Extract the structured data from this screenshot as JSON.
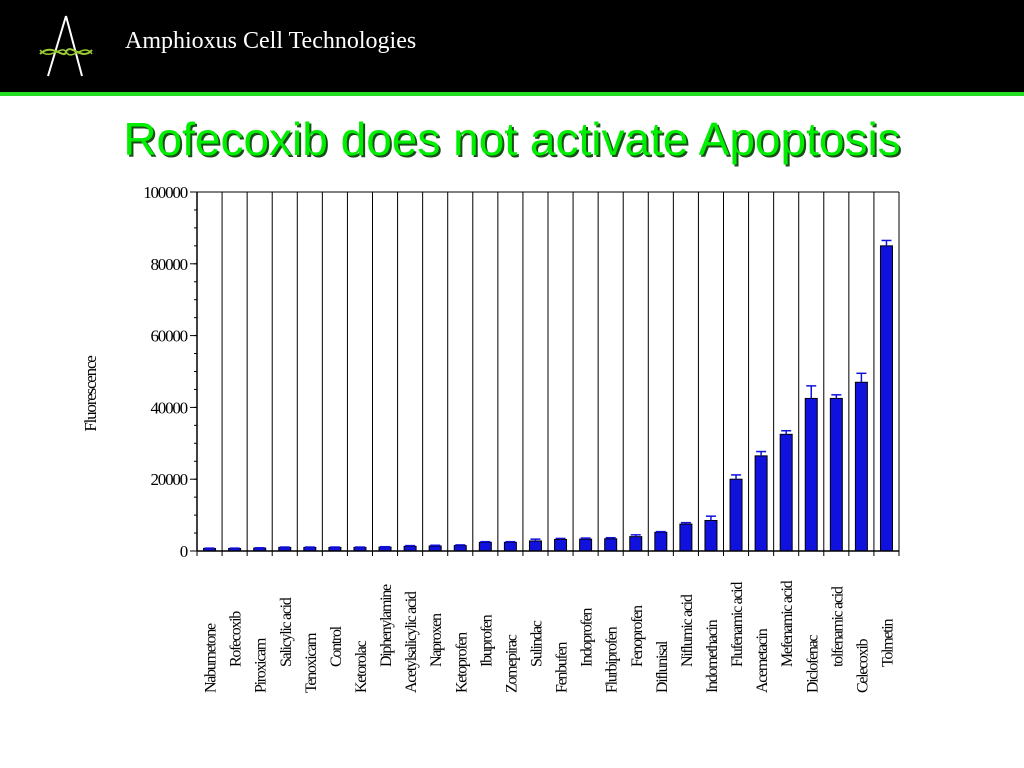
{
  "header": {
    "company_name": "Amphioxus Cell Technologies",
    "logo_icon": "amphioxus-logo-icon",
    "background_color": "#000000",
    "rule_color": "#22dd22"
  },
  "slide": {
    "title": "Rofecoxib does not activate Apoptosis",
    "title_color": "#00ee00"
  },
  "chart_data": {
    "type": "bar",
    "title": "",
    "xlabel": "",
    "ylabel": "Fluorescence",
    "ylim": [
      0,
      100000
    ],
    "yticks": [
      0,
      20000,
      40000,
      60000,
      80000,
      100000
    ],
    "ytick_labels": [
      "0",
      "20000",
      "40000",
      "60000",
      "80000",
      "100000"
    ],
    "grid": "vertical lines between categories",
    "legend": "none",
    "bar_color": "#1111dd",
    "categories": [
      "Nabumetone",
      "Rofecoxib",
      "Piroxicam",
      "Salicylic acid",
      "Tenoxicam",
      "Control",
      "Ketorolac",
      "Diphenylamine",
      "Acetylsalicylic acid",
      "Naproxen",
      "Ketoprofen",
      "Ibuprofen",
      "Zomepirac",
      "Sulindac",
      "Fenbufen",
      "Indoprofen",
      "Flurbiprofen",
      "Fenoprofen",
      "Diflunisal",
      "Niflumic acid",
      "Indomethacin",
      "Flufenamic acid",
      "Acemetacin",
      "Mefenamic acid",
      "Diclofenac",
      "tolfenamic acid",
      "Celecoxib",
      "Tolmetin"
    ],
    "values": [
      700,
      700,
      800,
      1000,
      1000,
      1000,
      1000,
      1100,
      1300,
      1400,
      1500,
      2400,
      2400,
      2800,
      3200,
      3300,
      3400,
      4000,
      5200,
      7500,
      8500,
      20000,
      26500,
      32500,
      42500,
      42500,
      47000,
      85000
    ],
    "errors": [
      100,
      100,
      100,
      100,
      100,
      100,
      100,
      100,
      200,
      200,
      200,
      200,
      200,
      500,
      300,
      300,
      300,
      500,
      200,
      400,
      1200,
      1200,
      1200,
      1000,
      3500,
      1000,
      2500,
      1500
    ]
  }
}
